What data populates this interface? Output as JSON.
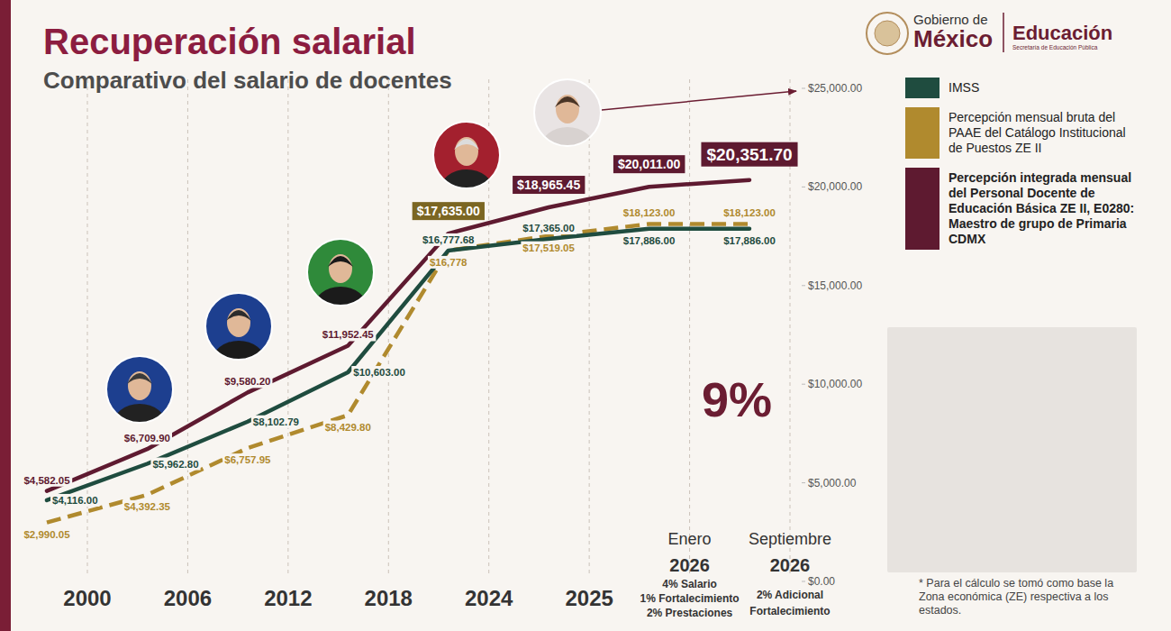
{
  "chart_data": {
    "type": "line",
    "title": "Recuperación salarial",
    "subtitle": "Comparativo del salario de docentes",
    "categories": [
      "2000",
      "2006",
      "2012",
      "2018",
      "2024",
      "2025",
      "Enero 2026",
      "Septiembre 2026"
    ],
    "category_notes": [
      null,
      null,
      null,
      null,
      null,
      null,
      [
        "4% Salario",
        "1% Fortalecimiento",
        "2% Prestaciones"
      ],
      [
        "2% Adicional",
        "Fortalecimiento"
      ]
    ],
    "series": [
      {
        "name": "IMSS",
        "color": "#1f4c3f",
        "line_style": "solid",
        "values": [
          4116.0,
          5962.8,
          8102.79,
          10603.0,
          16777.68,
          17365.0,
          17886.0,
          17886.0
        ],
        "value_labels": [
          "$4,116.00",
          "$5,962.80",
          "$8,102.79",
          "$10,603.00",
          "$16,777.68",
          "$17,365.00",
          "$17,886.00",
          "$17,886.00"
        ]
      },
      {
        "name": "Percepción mensual bruta del PAAE del Catálogo Institucional de Puestos ZE II",
        "color": "#b08a2e",
        "line_style": "dashed",
        "values": [
          2990.05,
          4392.35,
          6757.95,
          8429.8,
          16778,
          17519.05,
          18123.0,
          18123.0
        ],
        "value_labels": [
          "$2,990.05",
          "$4,392.35",
          "$6,757.95",
          "$8,429.80",
          "$16,778",
          "$17,519.05",
          "$18,123.00",
          "$18,123.00"
        ]
      },
      {
        "name": "Percepción integrada mensual del Personal Docente de Educación Básica ZE II, E0280: Maestro de grupo de Primaria CDMX",
        "color": "#5e1a30",
        "line_style": "solid",
        "values": [
          4582.05,
          6709.9,
          9580.2,
          11952.45,
          17635.0,
          18965.45,
          20011.0,
          20351.7
        ],
        "value_labels": [
          "$4,582.05",
          "$6,709.90",
          "$9,580.20",
          "$11,952.45",
          "$17,635.00",
          "$18,965.45",
          "$20,011.00",
          "$20,351.70"
        ]
      }
    ],
    "ylim": [
      0,
      25000
    ],
    "yticks": [
      {
        "value": 0,
        "label": "$0.00"
      },
      {
        "value": 5000,
        "label": "$5,000.00"
      },
      {
        "value": 10000,
        "label": "$10,000.00"
      },
      {
        "value": 15000,
        "label": "$15,000.00"
      },
      {
        "value": 20000,
        "label": "$20,000.00"
      },
      {
        "value": 25000,
        "label": "$25,000.00"
      }
    ],
    "grid": true,
    "data_labels": true,
    "legend": "right",
    "annotations": [
      {
        "text": "9%"
      }
    ]
  },
  "logo": {
    "line1": "Gobierno de",
    "line2": "México",
    "ministry": "Educación",
    "ministry_sub": "Secretaría de Educación Pública"
  },
  "footnote": "* Para el cálculo se tomó como base la Zona económica (ZE) respectiva a los estados."
}
